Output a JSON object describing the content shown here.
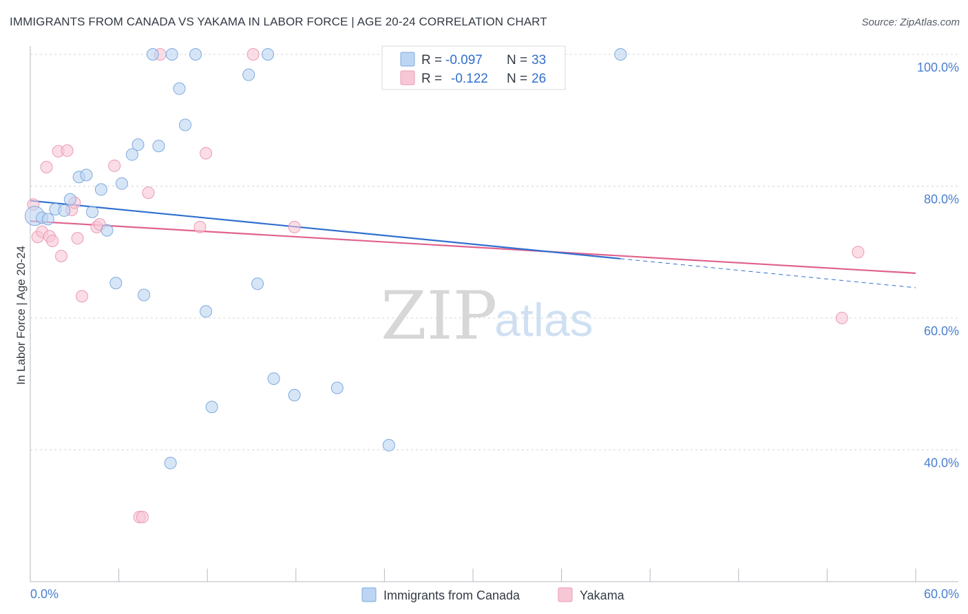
{
  "title": "IMMIGRANTS FROM CANADA VS YAKAMA IN LABOR FORCE | AGE 20-24 CORRELATION CHART",
  "source": "Source: ZipAtlas.com",
  "watermark": {
    "zip": "ZIP",
    "atlas": "atlas"
  },
  "legend_box": {
    "rows": [
      {
        "r_label": "R =",
        "r_value": "-0.097",
        "n_label": "N =",
        "n_value": "33"
      },
      {
        "r_label": "R =",
        "r_value": "-0.122",
        "n_label": "N =",
        "n_value": "26"
      }
    ]
  },
  "bottom_legend": {
    "items": [
      {
        "label": "Immigrants from Canada"
      },
      {
        "label": "Yakama"
      }
    ]
  },
  "colors": {
    "blue_fill": "#bcd5f2",
    "blue_stroke": "#7ea9de",
    "blue_line": "#2f6fcf",
    "pink_fill": "#f8c7d6",
    "pink_stroke": "#ea9ab4",
    "pink_line": "#e0628c",
    "grid": "#d0d4da",
    "axis_text": "#4a7fd0"
  },
  "chart_data": {
    "type": "scatter",
    "title": "IMMIGRANTS FROM CANADA VS YAKAMA IN LABOR FORCE | AGE 20-24 CORRELATION CHART",
    "xlabel": "",
    "ylabel": "In Labor Force | Age 20-24",
    "xlim": [
      0,
      60
    ],
    "ylim": [
      22,
      102
    ],
    "x_tick_labels": [
      "0.0%",
      "60.0%"
    ],
    "y_ticks": [
      40,
      60,
      80,
      100
    ],
    "y_tick_labels": [
      "40.0%",
      "60.0%",
      "80.0%",
      "100.0%"
    ],
    "grid": true,
    "legend_position": "bottom",
    "series": [
      {
        "name": "Immigrants from Canada",
        "color": "#bcd5f2",
        "points": [
          {
            "x": 0.3,
            "y": 75.5,
            "big": true
          },
          {
            "x": 0.8,
            "y": 75.2
          },
          {
            "x": 1.2,
            "y": 75.0
          },
          {
            "x": 1.7,
            "y": 76.5
          },
          {
            "x": 2.3,
            "y": 76.3
          },
          {
            "x": 2.7,
            "y": 78.0
          },
          {
            "x": 3.3,
            "y": 81.4
          },
          {
            "x": 3.8,
            "y": 81.7
          },
          {
            "x": 4.2,
            "y": 76.1
          },
          {
            "x": 4.8,
            "y": 79.5
          },
          {
            "x": 5.2,
            "y": 73.3
          },
          {
            "x": 5.8,
            "y": 65.3
          },
          {
            "x": 6.2,
            "y": 80.4
          },
          {
            "x": 6.9,
            "y": 84.8
          },
          {
            "x": 7.3,
            "y": 86.3
          },
          {
            "x": 7.7,
            "y": 63.5
          },
          {
            "x": 8.3,
            "y": 100.0
          },
          {
            "x": 8.7,
            "y": 86.1
          },
          {
            "x": 9.5,
            "y": 38.0
          },
          {
            "x": 9.6,
            "y": 100.0
          },
          {
            "x": 10.1,
            "y": 94.8
          },
          {
            "x": 10.5,
            "y": 89.3
          },
          {
            "x": 11.2,
            "y": 100.0
          },
          {
            "x": 11.9,
            "y": 61.0
          },
          {
            "x": 12.3,
            "y": 46.5
          },
          {
            "x": 14.8,
            "y": 96.9
          },
          {
            "x": 15.4,
            "y": 65.2
          },
          {
            "x": 16.1,
            "y": 100.0
          },
          {
            "x": 16.5,
            "y": 50.8
          },
          {
            "x": 17.9,
            "y": 48.3
          },
          {
            "x": 20.8,
            "y": 49.4
          },
          {
            "x": 24.3,
            "y": 40.7
          },
          {
            "x": 40.0,
            "y": 100.0
          }
        ],
        "trend": {
          "x0": 0,
          "y0": 77.8,
          "x1": 40.0,
          "y1": 69.0,
          "dash_to_x": 60,
          "dash_to_y": 64.6
        }
      },
      {
        "name": "Yakama",
        "color": "#f8c7d6",
        "points": [
          {
            "x": 0.2,
            "y": 77.2
          },
          {
            "x": 0.5,
            "y": 72.3
          },
          {
            "x": 0.8,
            "y": 73.1
          },
          {
            "x": 1.1,
            "y": 82.9
          },
          {
            "x": 1.3,
            "y": 72.4
          },
          {
            "x": 1.5,
            "y": 71.7
          },
          {
            "x": 1.9,
            "y": 85.3
          },
          {
            "x": 2.1,
            "y": 69.4
          },
          {
            "x": 2.5,
            "y": 85.4
          },
          {
            "x": 2.8,
            "y": 76.4
          },
          {
            "x": 3.0,
            "y": 77.5
          },
          {
            "x": 3.2,
            "y": 72.1
          },
          {
            "x": 3.5,
            "y": 63.3
          },
          {
            "x": 4.5,
            "y": 73.8
          },
          {
            "x": 4.7,
            "y": 74.2
          },
          {
            "x": 5.7,
            "y": 83.1
          },
          {
            "x": 7.4,
            "y": 29.8
          },
          {
            "x": 7.6,
            "y": 29.8
          },
          {
            "x": 8.0,
            "y": 79.0
          },
          {
            "x": 8.8,
            "y": 100.0
          },
          {
            "x": 11.5,
            "y": 73.8
          },
          {
            "x": 11.9,
            "y": 85.0
          },
          {
            "x": 15.1,
            "y": 100.0
          },
          {
            "x": 17.9,
            "y": 73.8
          },
          {
            "x": 55.0,
            "y": 60.0
          },
          {
            "x": 56.1,
            "y": 70.0
          }
        ],
        "trend": {
          "x0": 0,
          "y0": 74.7,
          "x1": 60,
          "y1": 66.8
        }
      }
    ]
  }
}
